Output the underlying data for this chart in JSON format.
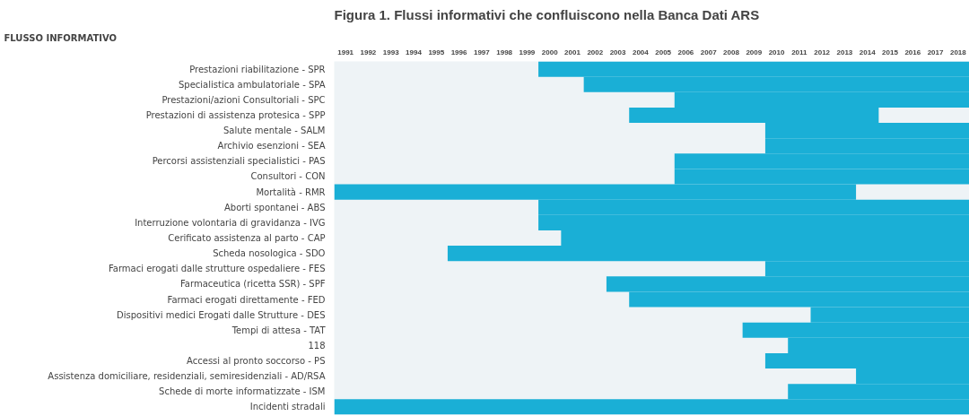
{
  "chart_data": {
    "type": "bar",
    "orientation": "horizontal",
    "title": "Figura 1. Flussi informativi che confluiscono nella Banca Dati ARS",
    "ylabel": "FLUSSO INFORMATIVO",
    "categories": [
      "Prestazioni riabilitazione - SPR",
      "Specialistica ambulatoriale - SPA",
      "Prestazioni/azioni Consultoriali - SPC",
      "Prestazioni di assistenza protesica - SPP",
      "Salute mentale - SALM",
      "Archivio esenzioni - SEA",
      "Percorsi assistenziali specialistici - PAS",
      "Consultori - CON",
      "Mortalità - RMR",
      "Aborti spontanei - ABS",
      "Interruzione volontaria di gravidanza - IVG",
      "Cerificato assistenza al parto - CAP",
      "Scheda nosologica - SDO",
      "Farmaci erogati dalle strutture ospedaliere - FES",
      "Farmaceutica (ricetta SSR) - SPF",
      "Farmaci erogati direttamente - FED",
      "Dispositivi medici Erogati dalle Strutture - DES",
      "Tempi di attesa - TAT",
      "118",
      "Accessi al pronto soccorso - PS",
      "Assistenza domiciliare, residenziali, semiresidenziali - AD/RSA",
      "Schede di morte informatizzate - ISM",
      "Incidenti stradali"
    ],
    "base": [
      2000,
      2002,
      2006,
      2004,
      2010,
      2010,
      2006,
      2006,
      1991,
      2000,
      2000,
      2001,
      1996,
      2010,
      2003,
      2004,
      2012,
      2009,
      2011,
      2010,
      2014,
      2011,
      1991
    ],
    "values": [
      19,
      17,
      13,
      11,
      9,
      9,
      13,
      13,
      23,
      19,
      19,
      18,
      23,
      9,
      16,
      15,
      7,
      10,
      8,
      9,
      5,
      8,
      28
    ],
    "color": "#1aafd6",
    "xlim": [
      1991,
      2019
    ],
    "xticks": [
      {
        "value": 1991.5,
        "label": "1991"
      },
      {
        "value": 1992.5,
        "label": "1992"
      },
      {
        "value": 1993.5,
        "label": "1993"
      },
      {
        "value": 1994.5,
        "label": "1994"
      },
      {
        "value": 1995.5,
        "label": "1995"
      },
      {
        "value": 1996.5,
        "label": "1996"
      },
      {
        "value": 1997.5,
        "label": "1997"
      },
      {
        "value": 1998.5,
        "label": "1998"
      },
      {
        "value": 1999.5,
        "label": "1999"
      },
      {
        "value": 2000.5,
        "label": "2000"
      },
      {
        "value": 2001.5,
        "label": "2001"
      },
      {
        "value": 2002.5,
        "label": "2002"
      },
      {
        "value": 2003.5,
        "label": "2003"
      },
      {
        "value": 2004.5,
        "label": "2004"
      },
      {
        "value": 2005.5,
        "label": "2005"
      },
      {
        "value": 2006.5,
        "label": "2006"
      },
      {
        "value": 2007.5,
        "label": "2007"
      },
      {
        "value": 2008.5,
        "label": "2008"
      },
      {
        "value": 2009.5,
        "label": "2009"
      },
      {
        "value": 2010.5,
        "label": "2010"
      },
      {
        "value": 2011.5,
        "label": "2011"
      },
      {
        "value": 2012.5,
        "label": "2012"
      },
      {
        "value": 2013.5,
        "label": "2013"
      },
      {
        "value": 2014.5,
        "label": "2014"
      },
      {
        "value": 2015.5,
        "label": "2015"
      },
      {
        "value": 2016.5,
        "label": "2016"
      },
      {
        "value": 2017.5,
        "label": "2017"
      },
      {
        "value": 2018.5,
        "label": "2018"
      }
    ],
    "grid": false
  }
}
